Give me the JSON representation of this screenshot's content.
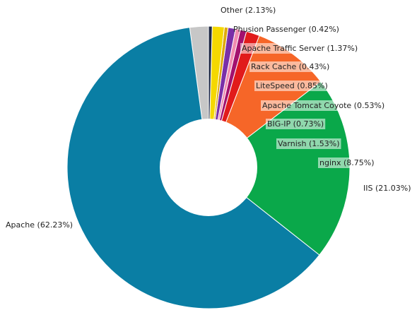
{
  "chart_data": {
    "type": "pie",
    "donut": true,
    "title": "",
    "start": "12 o'clock",
    "direction": "counter-clockwise",
    "slices": [
      {
        "label": "Other (2.13%)",
        "name": "Other",
        "value": 2.13,
        "color": "#c7c7c7"
      },
      {
        "label": "Apache (62.23%)",
        "name": "Apache",
        "value": 62.23,
        "color": "#0a7ea4"
      },
      {
        "label": "IIS (21.03%)",
        "name": "IIS",
        "value": 21.03,
        "color": "#0aa84a"
      },
      {
        "label": "nginx (8.75%)",
        "name": "nginx",
        "value": 8.75,
        "color": "#f66628"
      },
      {
        "label": "Varnish (1.53%)",
        "name": "Varnish",
        "value": 1.53,
        "color": "#e11b1b"
      },
      {
        "label": "BIG-IP (0.73%)",
        "name": "BIG-IP",
        "value": 0.73,
        "color": "#a3116e"
      },
      {
        "label": "Apache Tomcat Coyote (0.53%)",
        "name": "Apache Tomcat Coyote",
        "value": 0.53,
        "color": "#f08cb0"
      },
      {
        "label": "LiteSpeed (0.85%)",
        "name": "LiteSpeed",
        "value": 0.85,
        "color": "#7a2fa8"
      },
      {
        "label": "Rack Cache (0.43%)",
        "name": "Rack Cache",
        "value": 0.43,
        "color": "#e0aa0c"
      },
      {
        "label": "Apache Traffic Server (1.37%)",
        "name": "Apache Traffic Server",
        "value": 1.37,
        "color": "#f5d800"
      },
      {
        "label": "Phusion Passenger (0.42%)",
        "name": "Phusion Passenger",
        "value": 0.42,
        "color": "#1f2a44"
      }
    ],
    "remainder": {
      "value": 0.0,
      "color": "#14b8b8"
    }
  }
}
